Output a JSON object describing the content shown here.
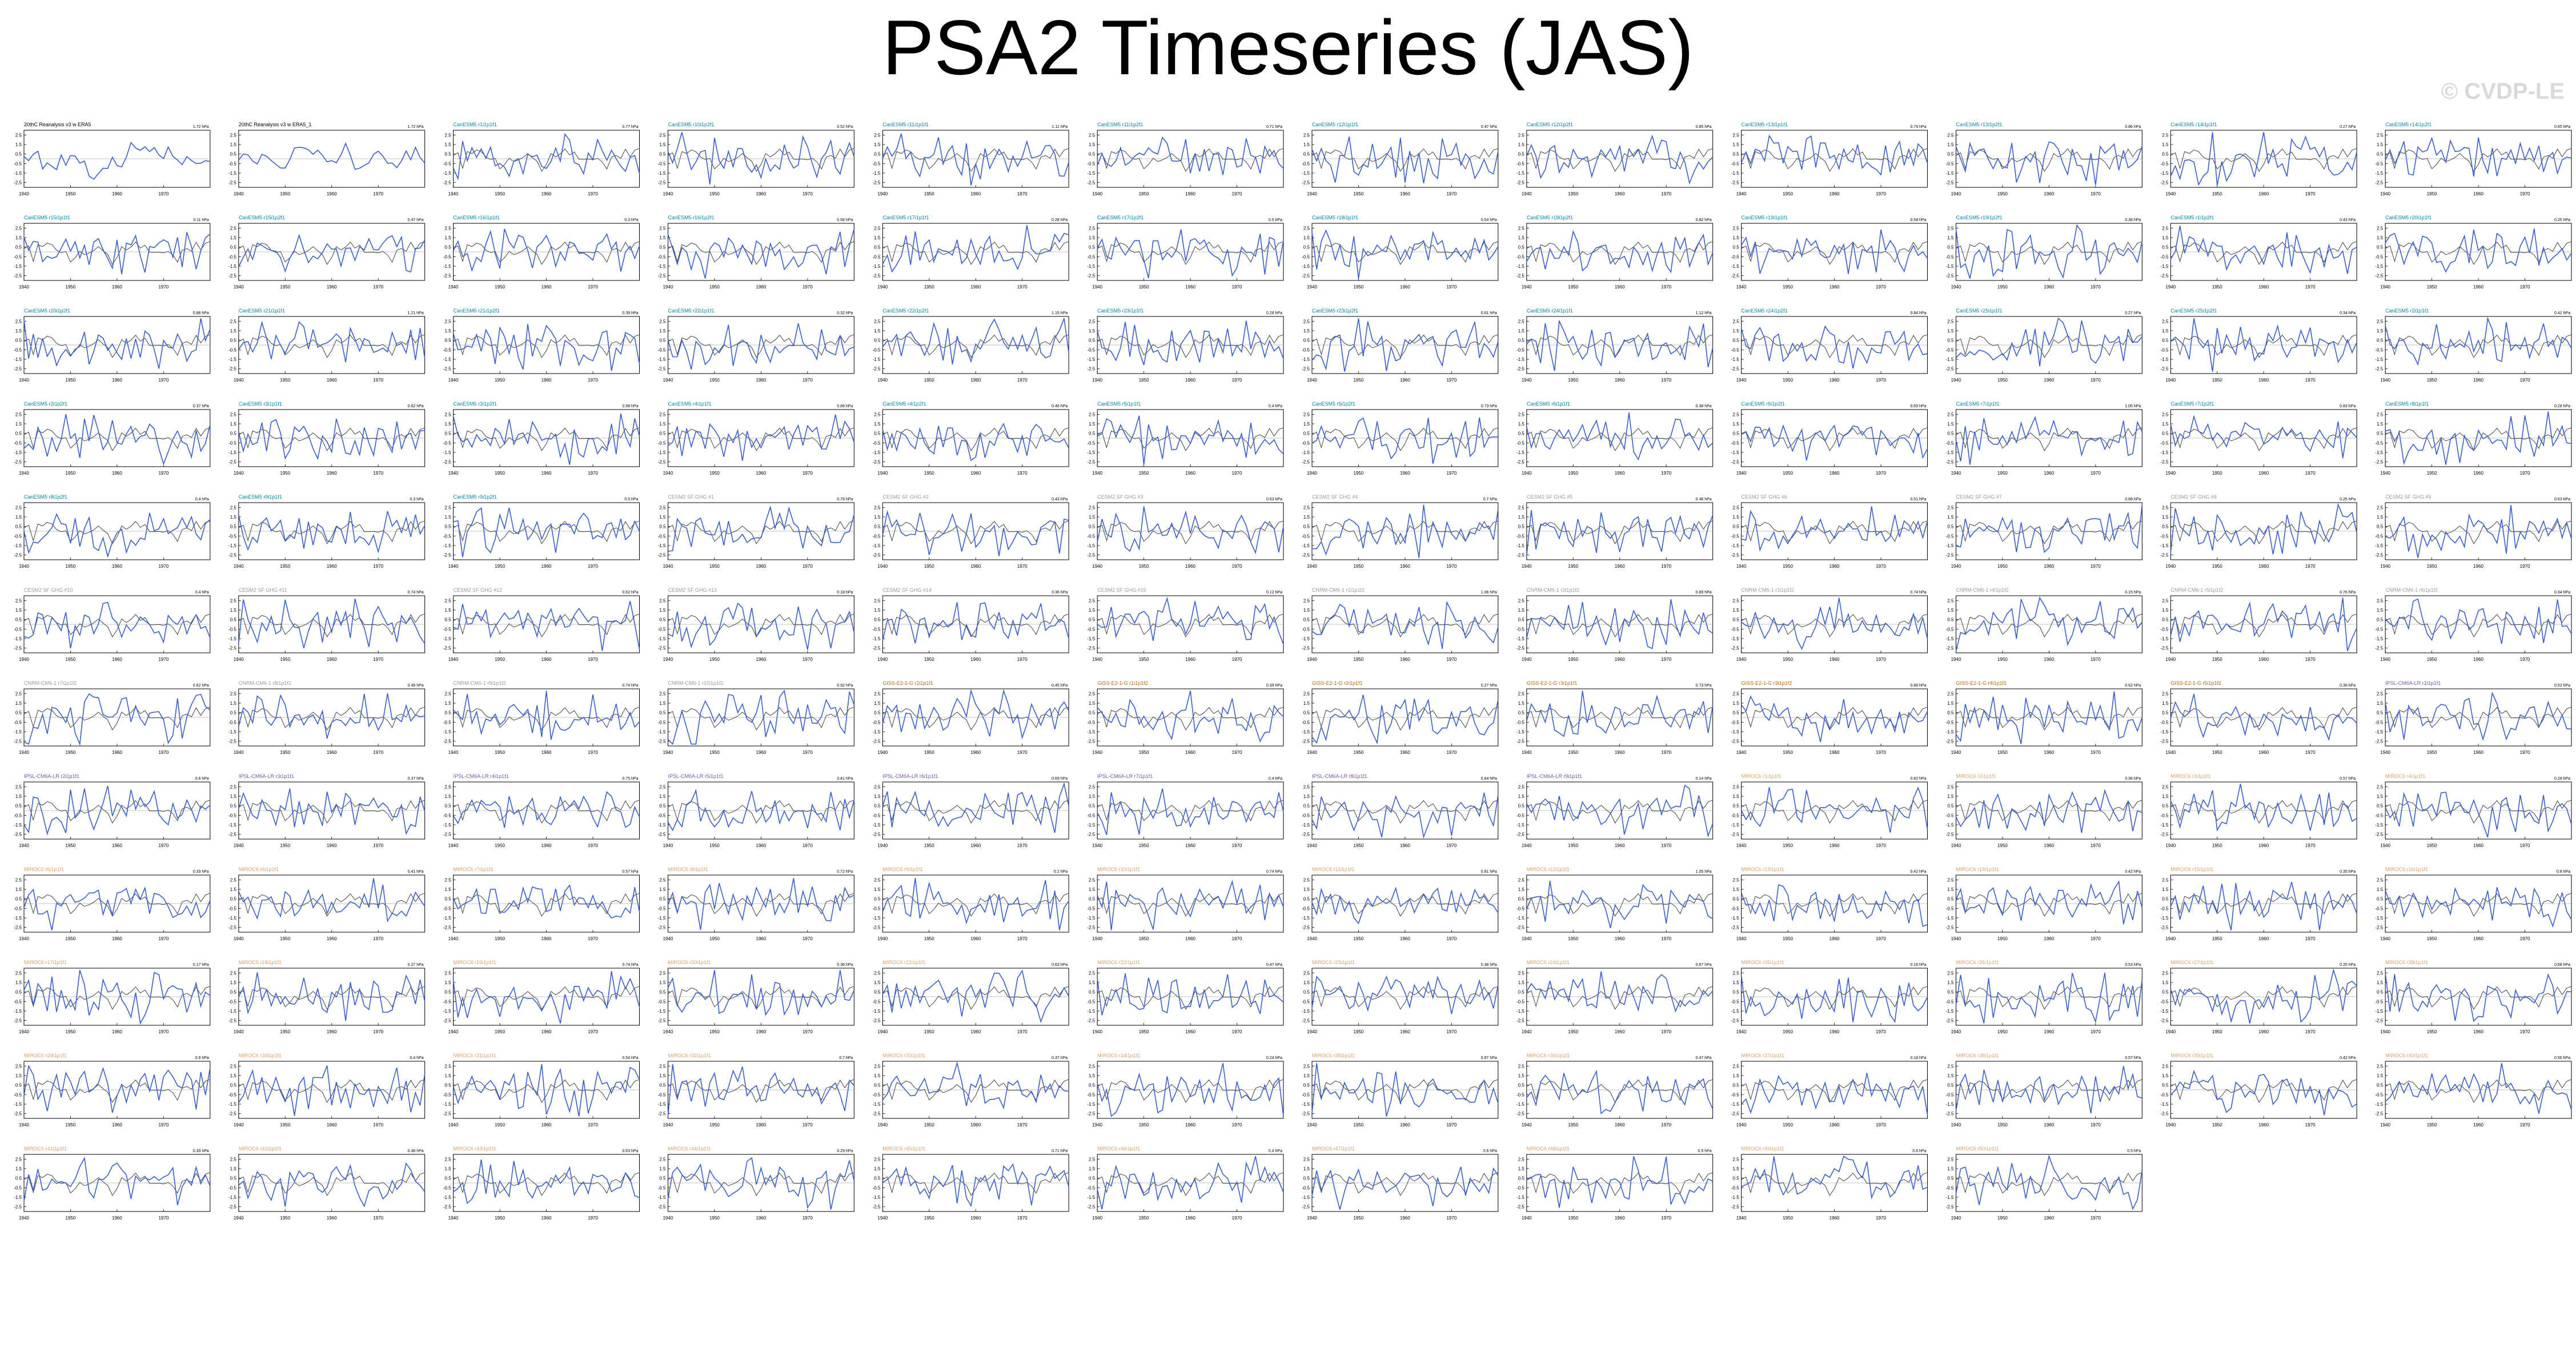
{
  "title": "PSA2 Timeseries (JAS)",
  "watermark": "© CVDP-LE",
  "colors": {
    "model": "#3a5fcd",
    "obs": "#404040",
    "zero": "#000000"
  },
  "chart_data": {
    "type": "line",
    "x_range": [
      1940,
      1980
    ],
    "x_ticks": [
      1940,
      1950,
      1960,
      1970
    ],
    "ylim": [
      -3,
      3
    ],
    "y_ticks": [
      "2.5",
      "1.5",
      "0.5",
      "-0.5",
      "-1.5",
      "-2.5"
    ],
    "panels": [
      {
        "label": "20thC Reanalysis v3 w ERA5",
        "value": "1.72 hPa",
        "color": "#000000"
      },
      {
        "label": "20thC Reanalysis v3 w ERA5_1",
        "value": "1.72 hPa",
        "color": "#000000"
      },
      {
        "label": "CanESM5 r1i1p1f1",
        "value": "0.77 hPa",
        "color": "#0088aa"
      },
      {
        "label": "CanESM5 r10i1p2f1",
        "value": "0.52 hPa",
        "color": "#0088aa"
      },
      {
        "label": "CanESM5 r11i1p1f1",
        "value": "1.11 hPa",
        "color": "#0088aa"
      },
      {
        "label": "CanESM5 r11i1p2f1",
        "value": "0.71 hPa",
        "color": "#0088aa"
      },
      {
        "label": "CanESM5 r12i1p1f1",
        "value": "0.47 hPa",
        "color": "#0088aa"
      },
      {
        "label": "CanESM5 r12i1p2f1",
        "value": "0.85 hPa",
        "color": "#0088aa"
      },
      {
        "label": "CanESM5 r13i1p1f1",
        "value": "0.79 hPa",
        "color": "#0088aa"
      },
      {
        "label": "CanESM5 r13i1p2f1",
        "value": "0.86 hPa",
        "color": "#0088aa"
      },
      {
        "label": "CanESM5 r14i1p1f1",
        "value": "0.27 hPa",
        "color": "#0088aa"
      },
      {
        "label": "CanESM5 r14i1p2f1",
        "value": "0.65 hPa",
        "color": "#0088aa"
      },
      {
        "label": "CanESM5 r15i1p1f1",
        "value": "0.11 hPa",
        "color": "#0088aa"
      },
      {
        "label": "CanESM5 r15i1p2f1",
        "value": "0.47 hPa",
        "color": "#0088aa"
      },
      {
        "label": "CanESM5 r16i1p1f1",
        "value": "0.3 hPa",
        "color": "#0088aa"
      },
      {
        "label": "CanESM5 r16i1p2f1",
        "value": "0.56 hPa",
        "color": "#0088aa"
      },
      {
        "label": "CanESM5 r17i1p1f1",
        "value": "0.28 hPa",
        "color": "#0088aa"
      },
      {
        "label": "CanESM5 r17i1p2f1",
        "value": "0.5 hPa",
        "color": "#0088aa"
      },
      {
        "label": "CanESM5 r18i1p1f1",
        "value": "0.54 hPa",
        "color": "#0088aa"
      },
      {
        "label": "CanESM5 r18i1p2f1",
        "value": "0.82 hPa",
        "color": "#0088aa"
      },
      {
        "label": "CanESM5 r19i1p1f1",
        "value": "0.58 hPa",
        "color": "#0088aa"
      },
      {
        "label": "CanESM5 r19i1p2f1",
        "value": "0.38 hPa",
        "color": "#0088aa"
      },
      {
        "label": "CanESM5 r1i1p2f1",
        "value": "0.43 hPa",
        "color": "#0088aa"
      },
      {
        "label": "CanESM5 r20i1p1f1",
        "value": "0.25 hPa",
        "color": "#0088aa"
      },
      {
        "label": "CanESM5 r20i1p2f1",
        "value": "0.88 hPa",
        "color": "#0088aa"
      },
      {
        "label": "CanESM5 r21i1p1f1",
        "value": "1.21 hPa",
        "color": "#0088aa"
      },
      {
        "label": "CanESM5 r21i1p2f1",
        "value": "0.39 hPa",
        "color": "#0088aa"
      },
      {
        "label": "CanESM5 r22i1p1f1",
        "value": "0.32 hPa",
        "color": "#0088aa"
      },
      {
        "label": "CanESM5 r22i1p2f1",
        "value": "1.15 hPa",
        "color": "#0088aa"
      },
      {
        "label": "CanESM5 r23i1p1f1",
        "value": "0.28 hPa",
        "color": "#0088aa"
      },
      {
        "label": "CanESM5 r23i1p2f1",
        "value": "0.61 hPa",
        "color": "#0088aa"
      },
      {
        "label": "CanESM5 r24i1p1f1",
        "value": "1.12 hPa",
        "color": "#0088aa"
      },
      {
        "label": "CanESM5 r24i1p2f1",
        "value": "0.84 hPa",
        "color": "#0088aa"
      },
      {
        "label": "CanESM5 r25i1p1f1",
        "value": "0.27 hPa",
        "color": "#0088aa"
      },
      {
        "label": "CanESM5 r25i1p2f1",
        "value": "0.34 hPa",
        "color": "#0088aa"
      },
      {
        "label": "CanESM5 r2i1p1f1",
        "value": "0.41 hPa",
        "color": "#0088aa"
      },
      {
        "label": "CanESM5 r2i1p2f1",
        "value": "0.37 hPa",
        "color": "#0088aa"
      },
      {
        "label": "CanESM5 r3i1p1f1",
        "value": "0.62 hPa",
        "color": "#0088aa"
      },
      {
        "label": "CanESM5 r3i1p2f1",
        "value": "0.98 hPa",
        "color": "#0088aa"
      },
      {
        "label": "CanESM5 r4i1p1f1",
        "value": "0.89 hPa",
        "color": "#0088aa"
      },
      {
        "label": "CanESM5 r4i1p2f1",
        "value": "0.46 hPa",
        "color": "#0088aa"
      },
      {
        "label": "CanESM5 r5i1p1f1",
        "value": "0.4 hPa",
        "color": "#0088aa"
      },
      {
        "label": "CanESM5 r5i1p2f1",
        "value": "0.73 hPa",
        "color": "#0088aa"
      },
      {
        "label": "CanESM5 r6i1p1f1",
        "value": "0.38 hPa",
        "color": "#0088aa"
      },
      {
        "label": "CanESM5 r6i1p2f1",
        "value": "0.69 hPa",
        "color": "#0088aa"
      },
      {
        "label": "CanESM5 r7i1p1f1",
        "value": "1.05 hPa",
        "color": "#0088aa"
      },
      {
        "label": "CanESM5 r7i1p2f1",
        "value": "0.83 hPa",
        "color": "#0088aa"
      },
      {
        "label": "CanESM5 r8i1p1f1",
        "value": "0.28 hPa",
        "color": "#0088aa"
      },
      {
        "label": "CanESM5 r8i1p2f1",
        "value": "0.4 hPa",
        "color": "#0088aa"
      },
      {
        "label": "CanESM5 r9i1p1f1",
        "value": "0.3 hPa",
        "color": "#0088aa"
      },
      {
        "label": "CanESM5 r9i1p2f1",
        "value": "0.5 hPa",
        "color": "#0088aa"
      },
      {
        "label": "CESM2 SF GHG #1",
        "value": "0.79 hPa",
        "color": "#999999"
      },
      {
        "label": "CESM2 SF GHG #2",
        "value": "0.43 hPa",
        "color": "#999999"
      },
      {
        "label": "CESM2 SF GHG #3",
        "value": "0.63 hPa",
        "color": "#999999"
      },
      {
        "label": "CESM2 SF GHG #4",
        "value": "0.7 hPa",
        "color": "#999999"
      },
      {
        "label": "CESM2 SF GHG #5",
        "value": "0.48 hPa",
        "color": "#999999"
      },
      {
        "label": "CESM2 SF GHG #6",
        "value": "0.51 hPa",
        "color": "#999999"
      },
      {
        "label": "CESM2 SF GHG #7",
        "value": "0.68 hPa",
        "color": "#999999"
      },
      {
        "label": "CESM2 SF GHG #8",
        "value": "0.25 hPa",
        "color": "#999999"
      },
      {
        "label": "CESM2 SF GHG #9",
        "value": "0.63 hPa",
        "color": "#999999"
      },
      {
        "label": "CESM2 SF GHG #10",
        "value": "0.4 hPa",
        "color": "#999999"
      },
      {
        "label": "CESM2 SF GHG #11",
        "value": "0.74 hPa",
        "color": "#999999"
      },
      {
        "label": "CESM2 SF GHG #12",
        "value": "0.62 hPa",
        "color": "#999999"
      },
      {
        "label": "CESM2 SF GHG #13",
        "value": "0.18 hPa",
        "color": "#999999"
      },
      {
        "label": "CESM2 SF GHG #14",
        "value": "0.36 hPa",
        "color": "#999999"
      },
      {
        "label": "CESM2 SF GHG #15",
        "value": "0.12 hPa",
        "color": "#999999"
      },
      {
        "label": "CNRM-CM6-1 r1i1p1f2",
        "value": "1.06 hPa",
        "color": "#999999"
      },
      {
        "label": "CNRM-CM6-1 r2i1p1f2",
        "value": "0.89 hPa",
        "color": "#999999"
      },
      {
        "label": "CNRM-CM6-1 r3i1p1f2",
        "value": "0.74 hPa",
        "color": "#999999"
      },
      {
        "label": "CNRM-CM6-1 r4i1p1f2",
        "value": "0.15 hPa",
        "color": "#999999"
      },
      {
        "label": "CNRM-CM6-1 r5i1p1f2",
        "value": "0.76 hPa",
        "color": "#999999"
      },
      {
        "label": "CNRM-CM6-1 r6i1p1f2",
        "value": "0.34 hPa",
        "color": "#999999"
      },
      {
        "label": "CNRM-CM6-1 r7i1p1f2",
        "value": "0.62 hPa",
        "color": "#999999"
      },
      {
        "label": "CNRM-CM6-1 r8i1p1f2",
        "value": "0.49 hPa",
        "color": "#999999"
      },
      {
        "label": "CNRM-CM6-1 r9i1p1f2",
        "value": "0.74 hPa",
        "color": "#999999"
      },
      {
        "label": "CNRM-CM6-1 r10i1p1f2",
        "value": "0.92 hPa",
        "color": "#999999"
      },
      {
        "label": "GISS-E2-1-G r1i1p1f1",
        "value": "0.45 hPa",
        "color": "#cc6600"
      },
      {
        "label": "GISS-E2-1-G r1i1p1f2",
        "value": "0.39 hPa",
        "color": "#cc6600"
      },
      {
        "label": "GISS-E2-1-G r2i1p1f1",
        "value": "0.27 hPa",
        "color": "#cc6600"
      },
      {
        "label": "GISS-E2-1-G r3i1p1f1",
        "value": "0.73 hPa",
        "color": "#cc6600"
      },
      {
        "label": "GISS-E2-1-G r3i1p1f2",
        "value": "0.88 hPa",
        "color": "#cc6600"
      },
      {
        "label": "GISS-E2-1-G r4i1p1f2",
        "value": "0.62 hPa",
        "color": "#cc6600"
      },
      {
        "label": "GISS-E2-1-G r5i1p1f2",
        "value": "0.36 hPa",
        "color": "#cc6600"
      },
      {
        "label": "IPSL-CM6A-LR r1i1p1f1",
        "value": "0.52 hPa",
        "color": "#7755aa"
      },
      {
        "label": "IPSL-CM6A-LR r2i1p1f1",
        "value": "0.6 hPa",
        "color": "#7755aa"
      },
      {
        "label": "IPSL-CM6A-LR r3i1p1f1",
        "value": "0.37 hPa",
        "color": "#7755aa"
      },
      {
        "label": "IPSL-CM6A-LR r4i1p1f1",
        "value": "0.75 hPa",
        "color": "#7755aa"
      },
      {
        "label": "IPSL-CM6A-LR r5i1p1f1",
        "value": "0.41 hPa",
        "color": "#7755aa"
      },
      {
        "label": "IPSL-CM6A-LR r6i1p1f1",
        "value": "0.69 hPa",
        "color": "#7755aa"
      },
      {
        "label": "IPSL-CM6A-LR r7i1p1f1",
        "value": "0.4 hPa",
        "color": "#7755aa"
      },
      {
        "label": "IPSL-CM6A-LR r8i1p1f1",
        "value": "0.64 hPa",
        "color": "#7755aa"
      },
      {
        "label": "IPSL-CM6A-LR r9i1p1f1",
        "value": "0.14 hPa",
        "color": "#7755aa"
      },
      {
        "label": "MIROC6 r1i1p1f1",
        "value": "0.82 hPa",
        "color": "#e0a060"
      },
      {
        "label": "MIROC6 r2i1p1f1",
        "value": "0.36 hPa",
        "color": "#e0a060"
      },
      {
        "label": "MIROC6 r3i1p1f1",
        "value": "0.57 hPa",
        "color": "#e0a060"
      },
      {
        "label": "MIROC6 r4i1p1f1",
        "value": "0.28 hPa",
        "color": "#e0a060"
      },
      {
        "label": "MIROC6 r5i1p1f1",
        "value": "0.33 hPa",
        "color": "#e0a060"
      },
      {
        "label": "MIROC6 r6i1p1f1",
        "value": "0.41 hPa",
        "color": "#e0a060"
      },
      {
        "label": "MIROC6 r7i1p1f1",
        "value": "0.57 hPa",
        "color": "#e0a060"
      },
      {
        "label": "MIROC6 r8i1p1f1",
        "value": "0.72 hPa",
        "color": "#e0a060"
      },
      {
        "label": "MIROC6 r9i1p1f1",
        "value": "0.2 hPa",
        "color": "#e0a060"
      },
      {
        "label": "MIROC6 r10i1p1f1",
        "value": "0.74 hPa",
        "color": "#e0a060"
      },
      {
        "label": "MIROC6 r11i1p1f1",
        "value": "0.81 hPa",
        "color": "#e0a060"
      },
      {
        "label": "MIROC6 r12i1p1f1",
        "value": "1.05 hPa",
        "color": "#e0a060"
      },
      {
        "label": "MIROC6 r13i1p1f1",
        "value": "0.42 hPa",
        "color": "#e0a060"
      },
      {
        "label": "MIROC6 r14i1p1f1",
        "value": "0.42 hPa",
        "color": "#e0a060"
      },
      {
        "label": "MIROC6 r15i1p1f1",
        "value": "0.35 hPa",
        "color": "#e0a060"
      },
      {
        "label": "MIROC6 r16i1p1f1",
        "value": "0.8 hPa",
        "color": "#e0a060"
      },
      {
        "label": "MIROC6 r17i1p1f1",
        "value": "0.17 hPa",
        "color": "#e0a060"
      },
      {
        "label": "MIROC6 r18i1p1f1",
        "value": "0.27 hPa",
        "color": "#e0a060"
      },
      {
        "label": "MIROC6 r19i1p1f1",
        "value": "0.74 hPa",
        "color": "#e0a060"
      },
      {
        "label": "MIROC6 r20i1p1f1",
        "value": "0.36 hPa",
        "color": "#e0a060"
      },
      {
        "label": "MIROC6 r21i1p1f1",
        "value": "0.63 hPa",
        "color": "#e0a060"
      },
      {
        "label": "MIROC6 r22i1p1f1",
        "value": "0.47 hPa",
        "color": "#e0a060"
      },
      {
        "label": "MIROC6 r23i1p1f1",
        "value": "0.38 hPa",
        "color": "#e0a060"
      },
      {
        "label": "MIROC6 r24i1p1f1",
        "value": "0.87 hPa",
        "color": "#e0a060"
      },
      {
        "label": "MIROC6 r25i1p1f1",
        "value": "0.16 hPa",
        "color": "#e0a060"
      },
      {
        "label": "MIROC6 r26i1p1f1",
        "value": "0.53 hPa",
        "color": "#e0a060"
      },
      {
        "label": "MIROC6 r27i1p1f1",
        "value": "0.25 hPa",
        "color": "#e0a060"
      },
      {
        "label": "MIROC6 r28i1p1f1",
        "value": "0.68 hPa",
        "color": "#e0a060"
      },
      {
        "label": "MIROC6 r29i1p1f1",
        "value": "0.9 hPa",
        "color": "#e0a060"
      },
      {
        "label": "MIROC6 r30i1p1f1",
        "value": "0.4 hPa",
        "color": "#e0a060"
      },
      {
        "label": "MIROC6 r31i1p1f1",
        "value": "0.54 hPa",
        "color": "#e0a060"
      },
      {
        "label": "MIROC6 r32i1p1f1",
        "value": "0.7 hPa",
        "color": "#e0a060"
      },
      {
        "label": "MIROC6 r33i1p1f1",
        "value": "0.37 hPa",
        "color": "#e0a060"
      },
      {
        "label": "MIROC6 r34i1p1f1",
        "value": "0.24 hPa",
        "color": "#e0a060"
      },
      {
        "label": "MIROC6 r35i1p1f1",
        "value": "0.67 hPa",
        "color": "#e0a060"
      },
      {
        "label": "MIROC6 r36i1p1f1",
        "value": "0.47 hPa",
        "color": "#e0a060"
      },
      {
        "label": "MIROC6 r37i1p1f1",
        "value": "0.18 hPa",
        "color": "#e0a060"
      },
      {
        "label": "MIROC6 r38i1p1f1",
        "value": "0.57 hPa",
        "color": "#e0a060"
      },
      {
        "label": "MIROC6 r39i1p1f1",
        "value": "0.42 hPa",
        "color": "#e0a060"
      },
      {
        "label": "MIROC6 r40i1p1f1",
        "value": "0.56 hPa",
        "color": "#e0a060"
      },
      {
        "label": "MIROC6 r41i1p1f1",
        "value": "0.33 hPa",
        "color": "#e0a060"
      },
      {
        "label": "MIROC6 r42i1p1f1",
        "value": "0.48 hPa",
        "color": "#e0a060"
      },
      {
        "label": "MIROC6 r43i1p1f1",
        "value": "0.63 hPa",
        "color": "#e0a060"
      },
      {
        "label": "MIROC6 r44i1p1f1",
        "value": "0.29 hPa",
        "color": "#e0a060"
      },
      {
        "label": "MIROC6 r45i1p1f1",
        "value": "0.71 hPa",
        "color": "#e0a060"
      },
      {
        "label": "MIROC6 r46i1p1f1",
        "value": "0.4 hPa",
        "color": "#e0a060"
      },
      {
        "label": "MIROC6 r47i1p1f1",
        "value": "0.6 hPa",
        "color": "#e0a060"
      },
      {
        "label": "MIROC6 r48i1p1f1",
        "value": "0.5 hPa",
        "color": "#e0a060"
      },
      {
        "label": "MIROC6 r49i1p1f1",
        "value": "0.6 hPa",
        "color": "#e0a060"
      },
      {
        "label": "MIROC6 r50i1p1f1",
        "value": "0.5 hPa",
        "color": "#e0a060"
      }
    ]
  }
}
